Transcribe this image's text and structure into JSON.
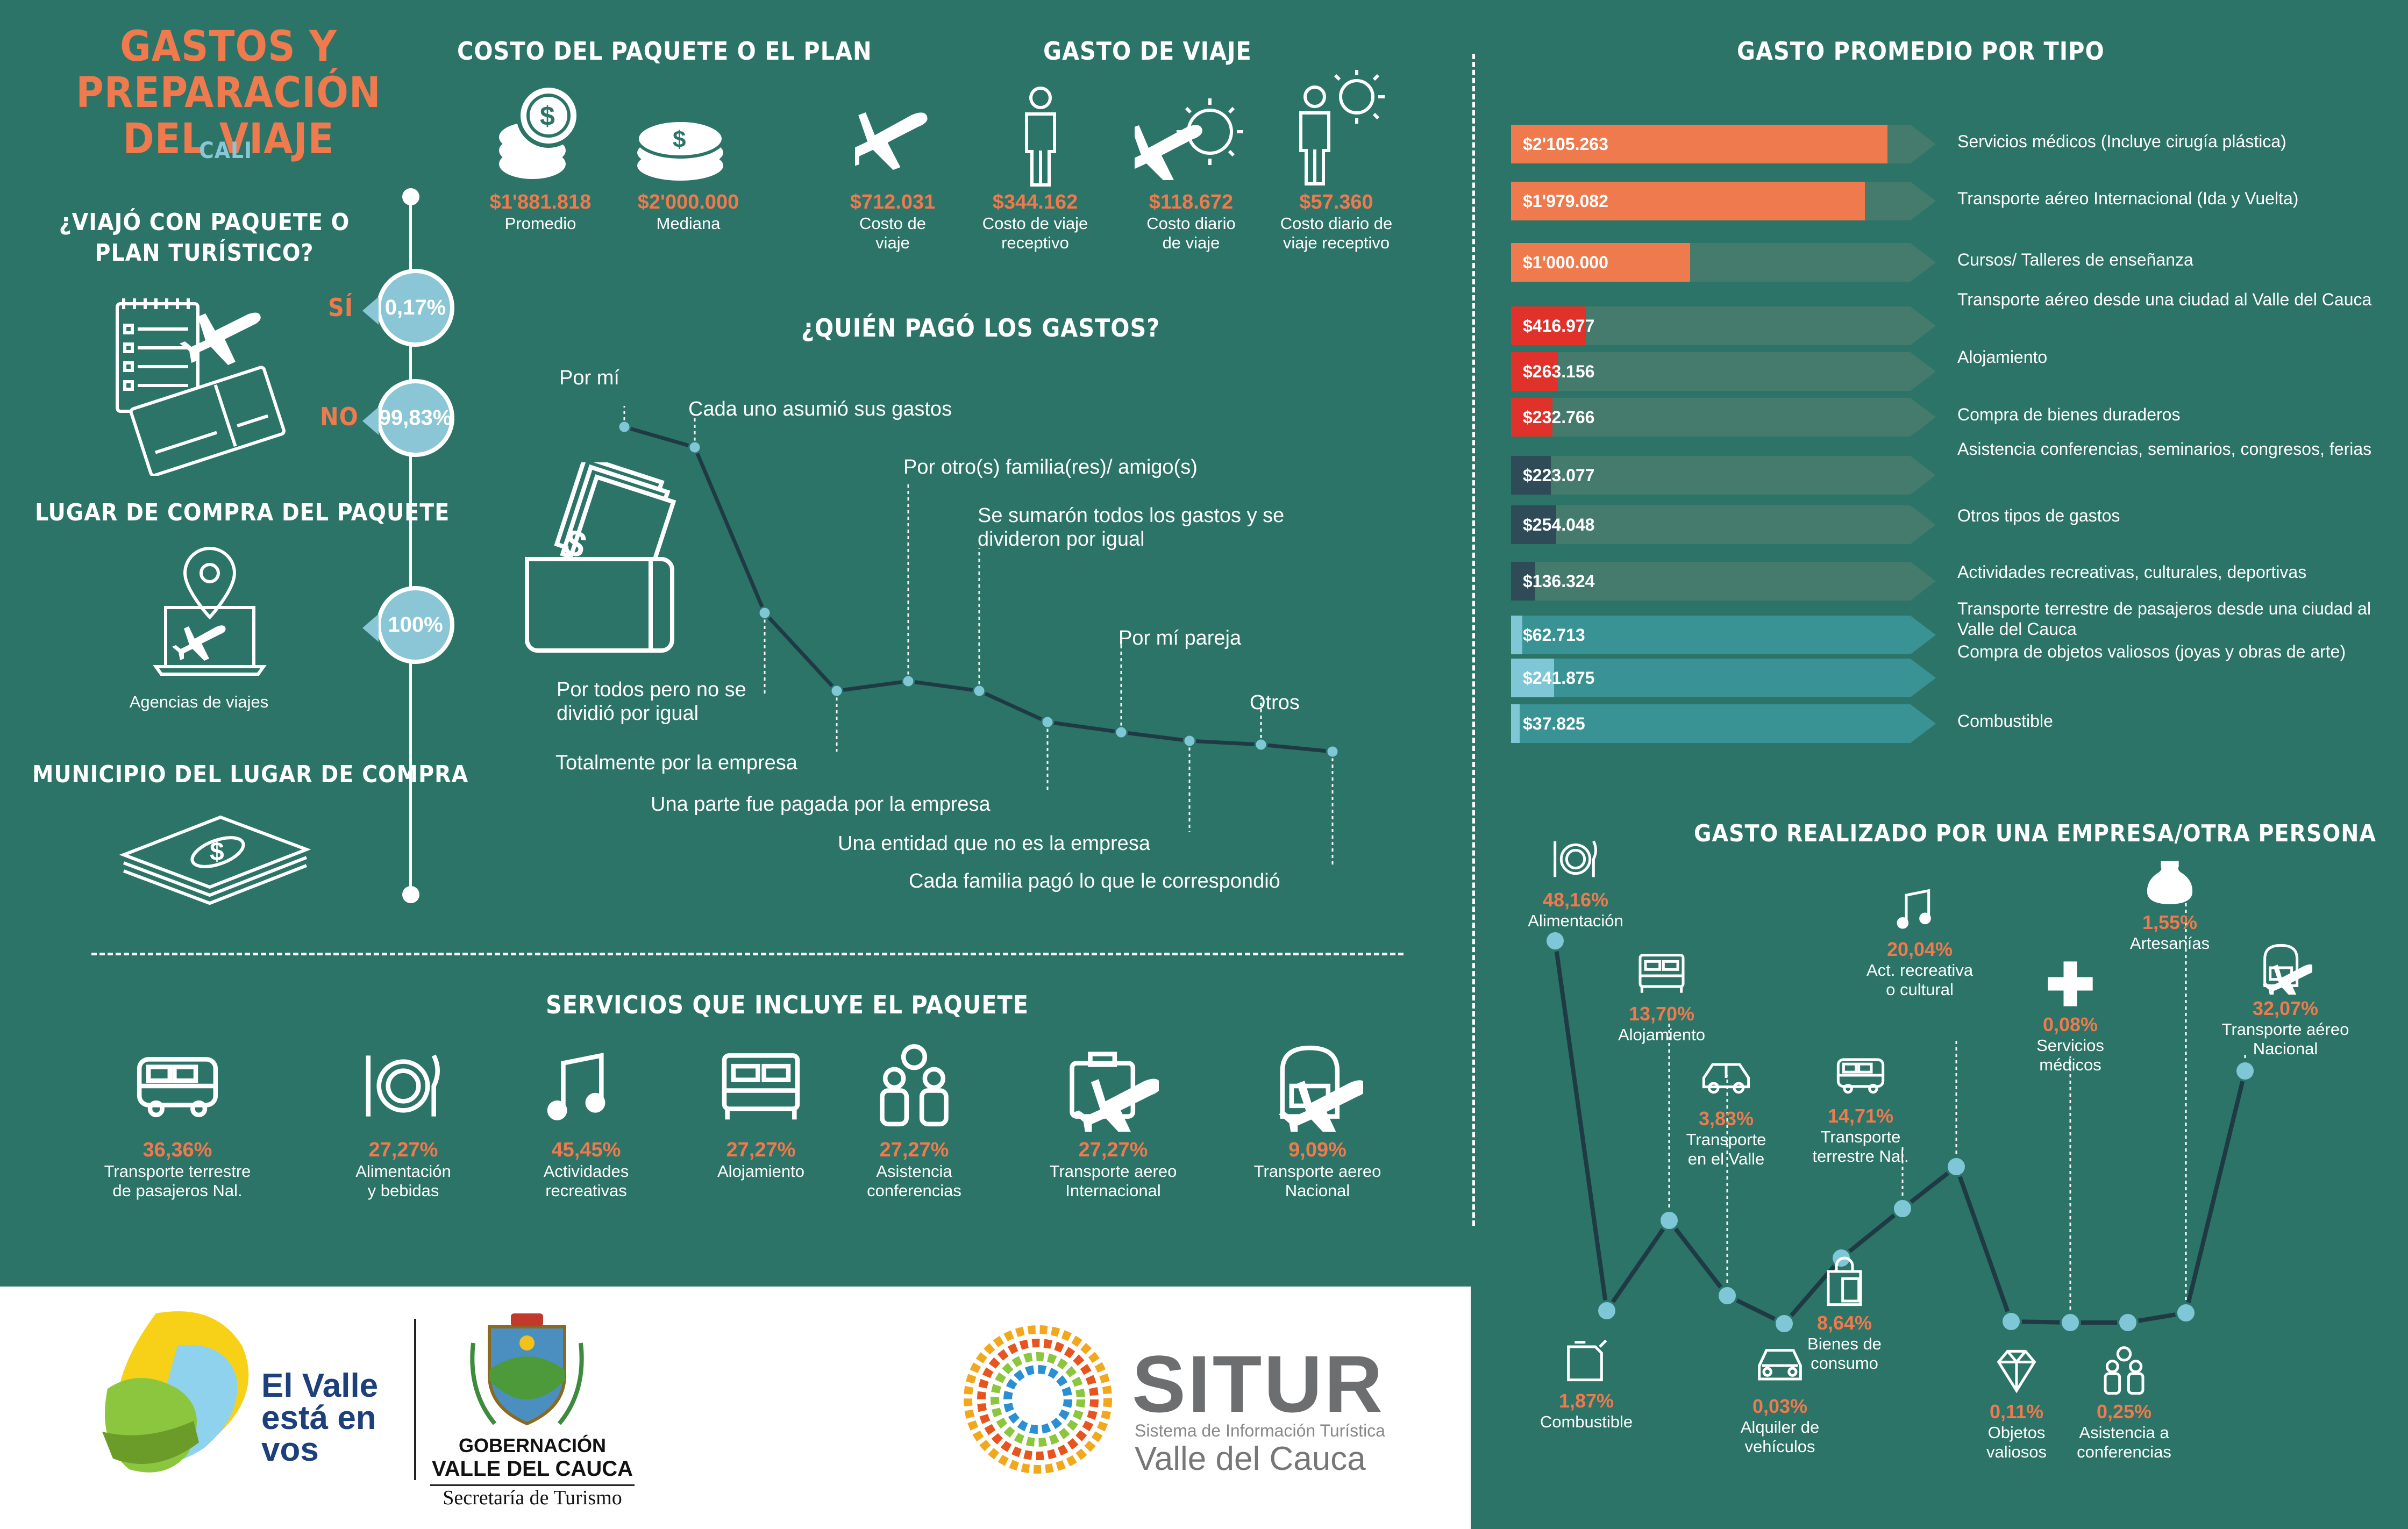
{
  "header": {
    "title_line1": "GASTOS Y PREPARACIÓN",
    "title_line2": "DEL VIAJE",
    "city": "CALI"
  },
  "package": {
    "question_line1": "¿VIAJÓ CON PAQUETE O",
    "question_line2": "PLAN TURÍSTICO?",
    "yes_label": "SÍ",
    "yes_value": "0,17%",
    "no_label": "NO",
    "no_value": "99,83%",
    "purchase_title": "LUGAR DE COMPRA DEL PAQUETE",
    "purchase_value": "100%",
    "purchase_label": "Agencias de viajes",
    "municipality_title": "MUNICIPIO DEL LUGAR DE COMPRA"
  },
  "plan_cost": {
    "title": "COSTO DEL PAQUETE O EL PLAN",
    "items": [
      {
        "value": "$1'881.818",
        "label": "Promedio"
      },
      {
        "value": "$2'000.000",
        "label": "Mediana"
      }
    ]
  },
  "trip_cost": {
    "title": "GASTO DE VIAJE",
    "items": [
      {
        "value": "$712.031",
        "label1": "Costo de",
        "label2": "viaje"
      },
      {
        "value": "$344.162",
        "label1": "Costo de viaje",
        "label2": "receptivo"
      },
      {
        "value": "$118.672",
        "label1": "Costo diario",
        "label2": "de viaje"
      },
      {
        "value": "$57.360",
        "label1": "Costo diario de",
        "label2": "viaje receptivo"
      }
    ]
  },
  "who_paid": {
    "title": "¿QUIÉN PAGÓ LOS GASTOS?",
    "labels": [
      "Por mí",
      "Cada uno asumió sus gastos",
      "Por todos pero no se",
      "dividió por igual",
      "Totalmente por la empresa",
      "Por otro(s) familia(res)/ amigo(s)",
      "Se sumarón todos los gastos y se",
      "divideron por igual",
      "Una parte fue pagada por la empresa",
      "Por mí pareja",
      "Una entidad que no es la empresa",
      "Otros",
      "Cada familia pagó lo que le correspondió"
    ]
  },
  "services": {
    "title": "SERVICIOS QUE INCLUYE EL PAQUETE",
    "items": [
      {
        "value": "36,36%",
        "label1": "Transporte terrestre",
        "label2": "de pasajeros Nal.",
        "icon": "bus-icon"
      },
      {
        "value": "27,27%",
        "label1": "Alimentación",
        "label2": "y bebidas",
        "icon": "plate-icon"
      },
      {
        "value": "45,45%",
        "label1": "Actividades",
        "label2": "recreativas",
        "icon": "music-icon"
      },
      {
        "value": "27,27%",
        "label1": "Alojamiento",
        "label2": "",
        "icon": "bed-icon"
      },
      {
        "value": "27,27%",
        "label1": "Asistencia",
        "label2": "conferencias",
        "icon": "people-icon"
      },
      {
        "value": "27,27%",
        "label1": "Transporte aereo",
        "label2": "Internacional",
        "icon": "suitcase-plane-icon"
      },
      {
        "value": "9,09%",
        "label1": "Transporte aereo",
        "label2": "Nacional",
        "icon": "backpack-plane-icon"
      }
    ]
  },
  "avg_by_type": {
    "title": "GASTO PROMEDIO POR TIPO",
    "bars": [
      {
        "value": "$2'105.263",
        "label": "Servicios médicos (Incluye cirugía plástica)",
        "amount": 2105263,
        "color": "#ee7a4e"
      },
      {
        "value": "$1'979.082",
        "label": "Transporte aéreo Internacional (Ida y Vuelta)",
        "amount": 1979082,
        "color": "#ee7a4e"
      },
      {
        "value": "$1'000.000",
        "label": "Cursos/ Talleres de enseñanza",
        "amount": 1000000,
        "color": "#ee7a4e"
      },
      {
        "value": "$416.977",
        "label": "Transporte aéreo desde una ciudad al Valle del Cauca",
        "amount": 416977,
        "color": "#e0322a"
      },
      {
        "value": "$263.156",
        "label": "Alojamiento",
        "amount": 263156,
        "color": "#e0322a"
      },
      {
        "value": "$232.766",
        "label": "Compra de bienes duraderos",
        "amount": 232766,
        "color": "#e0322a"
      },
      {
        "value": "$223.077",
        "label": "Asistencia conferencias, seminarios, congresos, ferias",
        "amount": 223077,
        "color": "#2e4b57"
      },
      {
        "value": "$254.048",
        "label": "Otros tipos de gastos",
        "amount": 254048,
        "color": "#2e4b57"
      },
      {
        "value": "$136.324",
        "label": "Actividades recreativas, culturales, deportivas",
        "amount": 136324,
        "color": "#2e4b57"
      },
      {
        "value": "$62.713",
        "label": "Transporte terrestre de pasajeros desde una ciudad al Valle del Cauca",
        "amount": 62713,
        "color": "#7fc7d6"
      },
      {
        "value": "$241.875",
        "label": "Compra de objetos valiosos (joyas y obras de arte)",
        "amount": 241875,
        "color": "#7fc7d6"
      },
      {
        "value": "$37.825",
        "label": "Combustible",
        "amount": 37825,
        "color": "#7fc7d6"
      }
    ]
  },
  "company_spend": {
    "title": "GASTO REALIZADO POR UNA EMPRESA/OTRA PERSONA",
    "points": [
      {
        "value": "48,16%",
        "label1": "Alimentación",
        "label2": "",
        "icon": "plate-icon"
      },
      {
        "value": "1,87%",
        "label1": "Combustible",
        "label2": "",
        "icon": "fuel-can-icon"
      },
      {
        "value": "13,70%",
        "label1": "Alojamiento",
        "label2": "",
        "icon": "bed-icon"
      },
      {
        "value": "3,83%",
        "label1": "Transporte",
        "label2": "en el Valle",
        "icon": "car-icon"
      },
      {
        "value": "0,03%",
        "label1": "Alquiler de",
        "label2": "vehículos",
        "icon": "car-front-icon"
      },
      {
        "value": "8,64%",
        "label1": "Bienes de",
        "label2": "consumo",
        "icon": "shopping-bag-icon"
      },
      {
        "value": "14,71%",
        "label1": "Transporte",
        "label2": "terrestre Nal.",
        "icon": "bus-icon"
      },
      {
        "value": "20,04%",
        "label1": "Act. recreativa",
        "label2": "o cultural",
        "icon": "music-icon"
      },
      {
        "value": "0,11%",
        "label1": "Objetos",
        "label2": "valiosos",
        "icon": "diamond-icon"
      },
      {
        "value": "0,08%",
        "label1": "Servicios",
        "label2": "médicos",
        "icon": "medical-cross-icon"
      },
      {
        "value": "0,25%",
        "label1": "Asistencia a",
        "label2": "conferencias",
        "icon": "people-icon"
      },
      {
        "value": "1,55%",
        "label1": "Artesanías",
        "label2": "",
        "icon": "vase-icon"
      },
      {
        "value": "32,07%",
        "label1": "Transporte aéreo",
        "label2": "Nacional",
        "icon": "backpack-plane-icon"
      }
    ]
  },
  "footer": {
    "valle_line1": "El Valle",
    "valle_line2": "está en",
    "valle_line3": "vos",
    "gov_line1": "GOBERNACIÓN",
    "gov_line2": "VALLE DEL CAUCA",
    "gov_line3": "Secretaría de Turismo",
    "situr_name": "SITUR",
    "situr_sub1": "Sistema de Información Turística",
    "situr_sub2": "Valle del Cauca"
  }
}
